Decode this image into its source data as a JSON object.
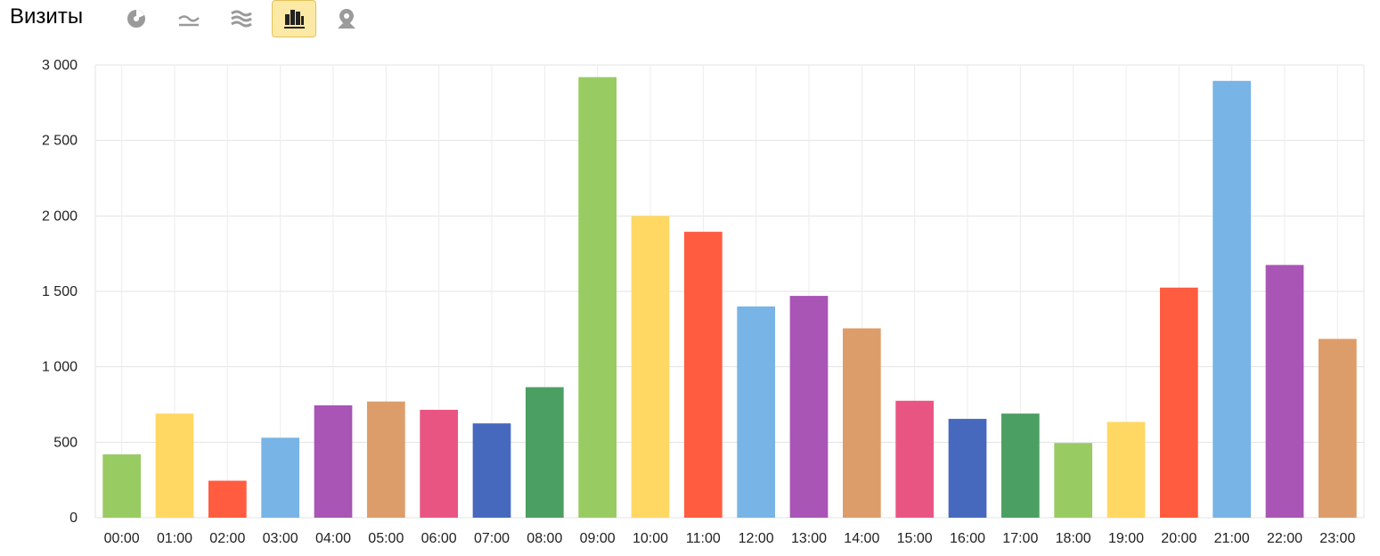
{
  "header": {
    "title": "Визиты",
    "icons": [
      {
        "name": "pie-chart-icon",
        "active": false
      },
      {
        "name": "line-chart-icon",
        "active": false
      },
      {
        "name": "area-chart-icon",
        "active": false
      },
      {
        "name": "bar-chart-icon",
        "active": true
      },
      {
        "name": "map-icon",
        "active": false
      }
    ],
    "active_bg": "#fde9a6"
  },
  "chart_data": {
    "type": "bar",
    "title": "",
    "xlabel": "",
    "ylabel": "",
    "ylim": [
      0,
      3000
    ],
    "yticks": [
      0,
      500,
      1000,
      1500,
      2000,
      2500,
      3000
    ],
    "ytick_labels": [
      "0",
      "500",
      "1 000",
      "1 500",
      "2 000",
      "2 500",
      "3 000"
    ],
    "grid": true,
    "categories": [
      "00:00",
      "01:00",
      "02:00",
      "03:00",
      "04:00",
      "05:00",
      "06:00",
      "07:00",
      "08:00",
      "09:00",
      "10:00",
      "11:00",
      "12:00",
      "13:00",
      "14:00",
      "15:00",
      "16:00",
      "17:00",
      "18:00",
      "19:00",
      "20:00",
      "21:00",
      "22:00",
      "23:00"
    ],
    "values": [
      420,
      690,
      245,
      530,
      745,
      770,
      715,
      625,
      865,
      2920,
      2000,
      1895,
      1400,
      1470,
      1255,
      775,
      655,
      690,
      495,
      635,
      1525,
      2895,
      1675,
      1185
    ],
    "colors": [
      "#99cb63",
      "#ffd864",
      "#ff5c40",
      "#78b4e5",
      "#a855b5",
      "#dd9d6a",
      "#e95583",
      "#4669be",
      "#4c9f62",
      "#99cb63",
      "#ffd864",
      "#ff5c40",
      "#78b4e5",
      "#a855b5",
      "#dd9d6a",
      "#e95583",
      "#4669be",
      "#4c9f62",
      "#99cb63",
      "#ffd864",
      "#ff5c40",
      "#78b4e5",
      "#a855b5",
      "#dd9d6a"
    ]
  }
}
